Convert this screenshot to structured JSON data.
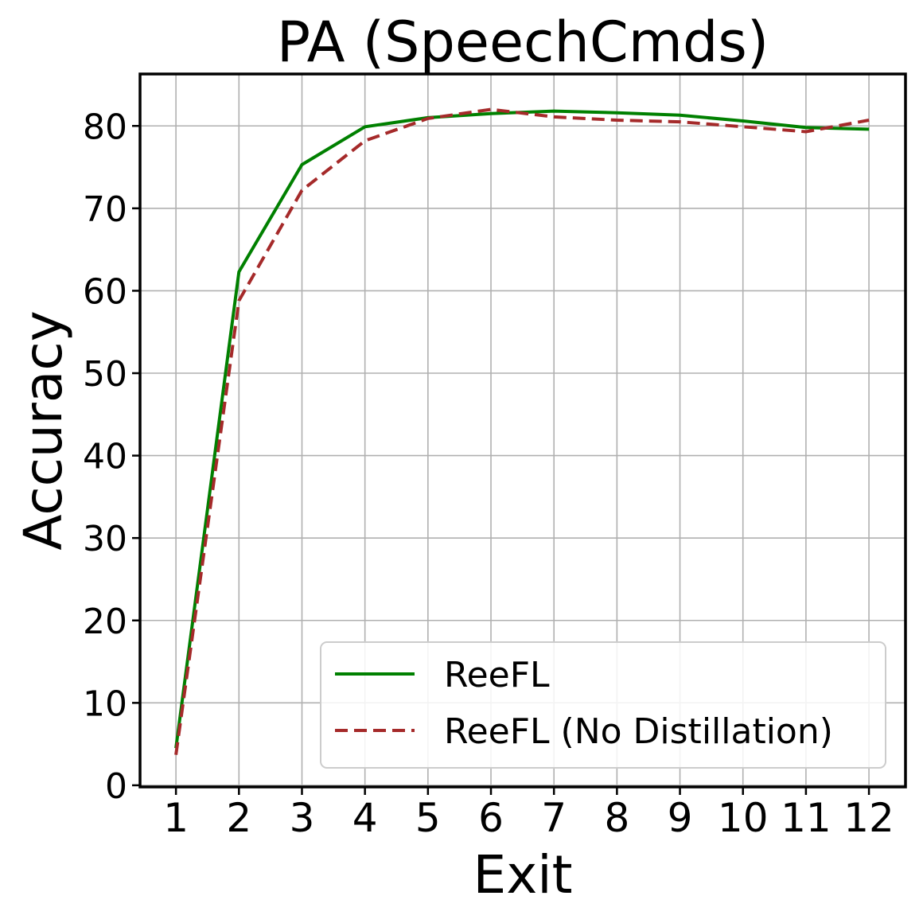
{
  "chart_data": {
    "type": "line",
    "title": "PA (SpeechCmds)",
    "xlabel": "Exit",
    "ylabel": "Accuracy",
    "x": [
      1,
      2,
      3,
      4,
      5,
      6,
      7,
      8,
      9,
      10,
      11,
      12
    ],
    "xlim": [
      0.43,
      12.58
    ],
    "ylim": [
      -0.2,
      86.3
    ],
    "xticks": [
      1,
      2,
      3,
      4,
      5,
      6,
      7,
      8,
      9,
      10,
      11,
      12
    ],
    "yticks": [
      0,
      10,
      20,
      30,
      40,
      50,
      60,
      70,
      80
    ],
    "grid": true,
    "legend_position": "lower-right",
    "series": [
      {
        "name": "ReeFL",
        "color": "#008000",
        "style": "solid",
        "values": [
          4.5,
          62.3,
          75.3,
          79.9,
          81.0,
          81.5,
          81.8,
          81.6,
          81.3,
          80.6,
          79.8,
          79.6
        ]
      },
      {
        "name": "ReeFL (No Distillation)",
        "color": "#a52a2a",
        "style": "dashed",
        "values": [
          3.7,
          58.8,
          72.2,
          78.2,
          80.9,
          82.0,
          81.1,
          80.7,
          80.5,
          79.9,
          79.3,
          80.7
        ]
      }
    ]
  }
}
